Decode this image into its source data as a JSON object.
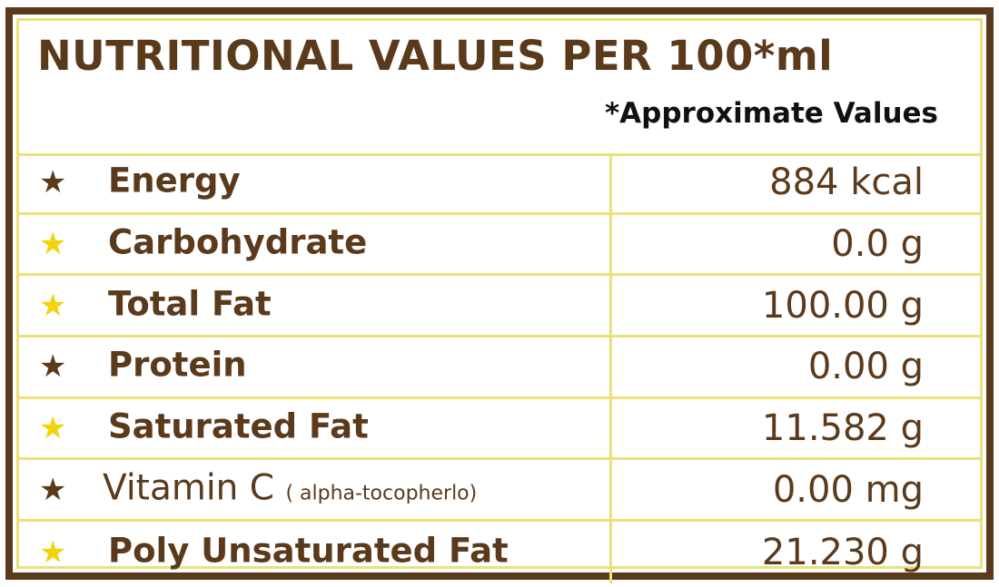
{
  "header": {
    "title": "NUTRITIONAL VALUES PER 100*ml",
    "subtitle": "*Approximate Values"
  },
  "colors": {
    "brown": "#5b3a1c",
    "yellow": "#f2d40a",
    "divider": "#ece07a"
  },
  "rows": [
    {
      "label": "Energy",
      "note": "",
      "value": "884 kcal",
      "star_color": "brown"
    },
    {
      "label": "Carbohydrate",
      "note": "",
      "value": "0.0 g",
      "star_color": "yellow"
    },
    {
      "label": "Total Fat",
      "note": "",
      "value": "100.00 g",
      "star_color": "yellow"
    },
    {
      "label": "Protein",
      "note": "",
      "value": "0.00 g",
      "star_color": "brown"
    },
    {
      "label": "Saturated Fat",
      "note": "",
      "value": "11.582 g",
      "star_color": "yellow"
    },
    {
      "label": "Vitamin C",
      "note": "( alpha-tocopherlo)",
      "value": "0.00 mg",
      "star_color": "brown"
    },
    {
      "label": "Poly Unsaturated Fat",
      "note": "",
      "value": "21.230 g",
      "star_color": "yellow"
    }
  ]
}
